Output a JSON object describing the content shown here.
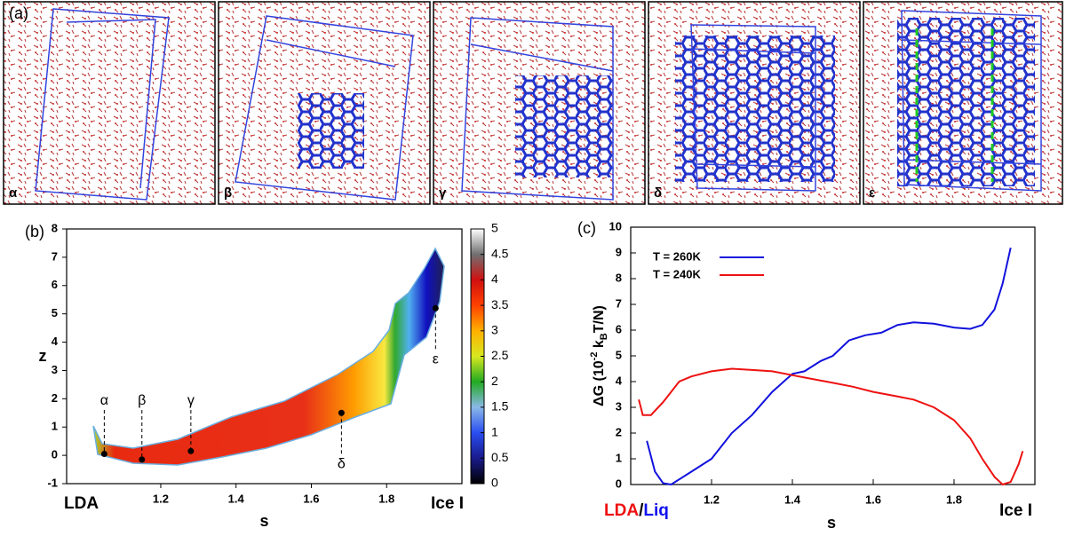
{
  "panel_a": {
    "label": "(a)",
    "snapshots": [
      "α",
      "β",
      "γ",
      "δ",
      "ε"
    ]
  },
  "chart_data": [
    {
      "type": "contour",
      "panel_label": "(b)",
      "xlabel": "s",
      "ylabel": "z",
      "xlim": [
        0.95,
        2.0
      ],
      "ylim": [
        -1,
        8
      ],
      "xticks": [
        1.2,
        1.4,
        1.6,
        1.8
      ],
      "yticks": [
        -1,
        0,
        1,
        2,
        3,
        4,
        5,
        6,
        7,
        8
      ],
      "end_labels": [
        "LDA",
        "Ice I"
      ],
      "points": {
        "labels": [
          "α",
          "β",
          "γ",
          "δ",
          "ε"
        ],
        "x": [
          1.05,
          1.15,
          1.28,
          1.68,
          1.93
        ],
        "y": [
          0.05,
          -0.15,
          0.15,
          1.5,
          5.2
        ]
      },
      "colorbar": {
        "lim": [
          0,
          5
        ],
        "ticks": [
          0,
          0.5,
          1,
          1.5,
          2,
          2.5,
          3,
          3.5,
          4,
          4.5,
          5
        ],
        "colors": [
          "#000000",
          "#1a1a8c",
          "#2a4ef0",
          "#8ab8e8",
          "#22aa22",
          "#d8e820",
          "#ffb000",
          "#ff4000",
          "#d01010",
          "#707070",
          "#ffffff"
        ]
      }
    },
    {
      "type": "line",
      "panel_label": "(c)",
      "xlabel": "s",
      "ylabel_parts": [
        "ΔG (10",
        "-2",
        " k",
        "B",
        "T/N)"
      ],
      "xlim": [
        1.0,
        2.0
      ],
      "ylim": [
        0,
        10
      ],
      "xticks": [
        1.2,
        1.4,
        1.6,
        1.8
      ],
      "yticks": [
        0,
        1,
        2,
        3,
        4,
        5,
        6,
        7,
        8,
        9,
        10
      ],
      "legend": "upper left",
      "left_labels": [
        {
          "text": "LDA",
          "color": "#ee1111"
        },
        {
          "text": "/",
          "color": "#000000"
        },
        {
          "text": "Liq",
          "color": "#1111ee"
        }
      ],
      "right_label": "Ice I",
      "series": [
        {
          "name": "T = 260K",
          "color": "#1111dd",
          "x": [
            1.04,
            1.06,
            1.08,
            1.1,
            1.12,
            1.15,
            1.2,
            1.25,
            1.3,
            1.35,
            1.4,
            1.43,
            1.47,
            1.5,
            1.54,
            1.58,
            1.62,
            1.66,
            1.7,
            1.75,
            1.8,
            1.84,
            1.87,
            1.9,
            1.92,
            1.94
          ],
          "values": [
            1.7,
            0.5,
            0.05,
            0.0,
            0.2,
            0.5,
            1.0,
            2.0,
            2.7,
            3.6,
            4.3,
            4.4,
            4.8,
            5.0,
            5.6,
            5.8,
            5.9,
            6.2,
            6.3,
            6.25,
            6.1,
            6.05,
            6.2,
            6.8,
            7.8,
            9.2
          ]
        },
        {
          "name": "T = 240K",
          "color": "#ee1111",
          "x": [
            1.02,
            1.03,
            1.05,
            1.08,
            1.1,
            1.12,
            1.15,
            1.2,
            1.25,
            1.3,
            1.35,
            1.4,
            1.45,
            1.5,
            1.55,
            1.6,
            1.65,
            1.7,
            1.75,
            1.8,
            1.84,
            1.87,
            1.9,
            1.92,
            1.94,
            1.96,
            1.97
          ],
          "values": [
            3.3,
            2.7,
            2.7,
            3.2,
            3.6,
            4.0,
            4.2,
            4.4,
            4.5,
            4.45,
            4.4,
            4.25,
            4.1,
            3.95,
            3.8,
            3.6,
            3.45,
            3.3,
            3.0,
            2.5,
            1.8,
            1.0,
            0.3,
            0.0,
            0.1,
            0.8,
            1.3
          ]
        }
      ]
    }
  ]
}
